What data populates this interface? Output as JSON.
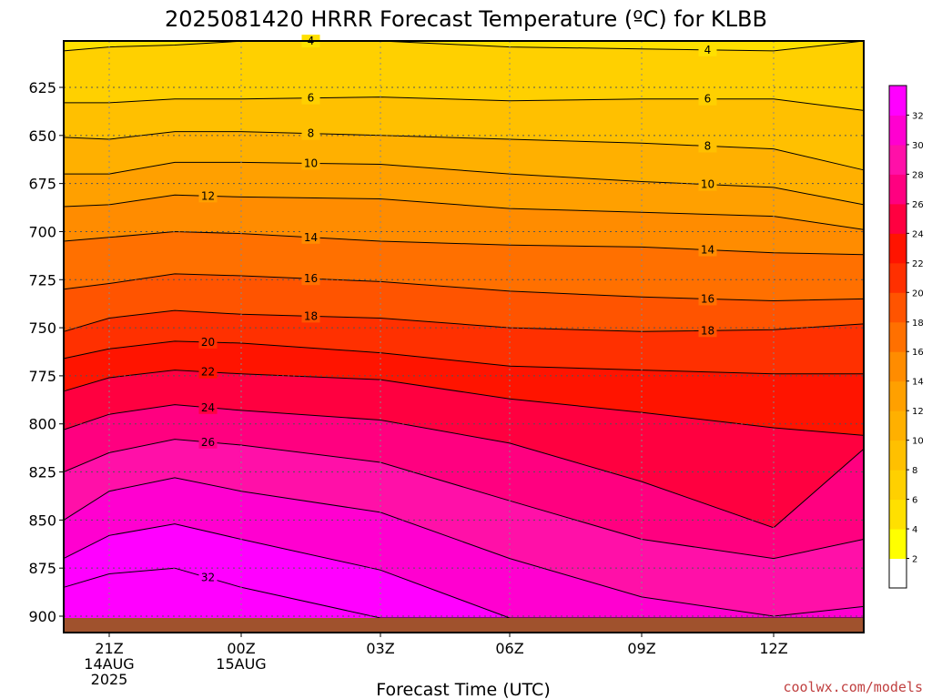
{
  "chart_data": {
    "type": "contour",
    "title": "2025081420 HRRR Forecast Temperature (ºC) for KLBB",
    "xlabel": "Forecast Time (UTC)",
    "ylabel": "",
    "y_ticks": [
      "625",
      "650",
      "675",
      "700",
      "725",
      "750",
      "775",
      "800",
      "825",
      "850",
      "875",
      "900"
    ],
    "x_ticks": [
      {
        "lines": [
          "21Z",
          "14AUG",
          "2025"
        ]
      },
      {
        "lines": [
          "00Z",
          "15AUG"
        ]
      },
      {
        "lines": [
          "03Z"
        ]
      },
      {
        "lines": [
          "06Z"
        ]
      },
      {
        "lines": [
          "09Z"
        ]
      },
      {
        "lines": [
          "12Z"
        ]
      }
    ],
    "grid": true,
    "colorbar_ticks": [
      2,
      4,
      6,
      8,
      10,
      12,
      14,
      16,
      18,
      20,
      22,
      24,
      26,
      28,
      30,
      32
    ],
    "colorbar_colors": [
      "#ffffff",
      "#ffff00",
      "#ffe000",
      "#ffd000",
      "#ffc000",
      "#ffb000",
      "#ffa000",
      "#ff8c00",
      "#ff7000",
      "#ff5400",
      "#ff3000",
      "#ff1400",
      "#ff0040",
      "#ff0080",
      "#ff10a8",
      "#ff00d0",
      "#ff00ff"
    ],
    "contours": [
      {
        "value": 4,
        "pressure": [
          606,
          604,
          603,
          601,
          600,
          604,
          605,
          606,
          600
        ],
        "labels": [
          "4",
          "4"
        ]
      },
      {
        "value": 6,
        "pressure": [
          633,
          633,
          631,
          631,
          630,
          632,
          631,
          631,
          637
        ],
        "labels": [
          "6",
          "6"
        ]
      },
      {
        "value": 8,
        "pressure": [
          651,
          652,
          648,
          648,
          650,
          652,
          654,
          657,
          668
        ],
        "labels": [
          "8",
          "8"
        ]
      },
      {
        "value": 10,
        "pressure": [
          670,
          670,
          664,
          664,
          665,
          670,
          674,
          677,
          686
        ],
        "labels": [
          "10",
          "10"
        ]
      },
      {
        "value": 12,
        "pressure": [
          687,
          686,
          681,
          682,
          683,
          688,
          690,
          692,
          699
        ],
        "labels": [
          "12"
        ]
      },
      {
        "value": 14,
        "pressure": [
          705,
          703,
          700,
          701,
          705,
          707,
          708,
          711,
          712
        ],
        "labels": [
          "14",
          "14"
        ]
      },
      {
        "value": 16,
        "pressure": [
          730,
          727,
          722,
          723,
          726,
          731,
          734,
          736,
          735
        ],
        "labels": [
          "16",
          "16"
        ]
      },
      {
        "value": 18,
        "pressure": [
          752,
          745,
          741,
          743,
          745,
          750,
          752,
          751,
          748
        ],
        "labels": [
          "18",
          "18"
        ]
      },
      {
        "value": 20,
        "pressure": [
          766,
          761,
          757,
          758,
          763,
          770,
          772,
          774,
          774
        ],
        "labels": [
          "20"
        ]
      },
      {
        "value": 22,
        "pressure": [
          783,
          776,
          772,
          774,
          777,
          787,
          794,
          802,
          806
        ],
        "labels": [
          "22"
        ]
      },
      {
        "value": 24,
        "pressure": [
          803,
          795,
          790,
          793,
          798,
          810,
          830,
          854,
          813
        ],
        "labels": [
          "24"
        ]
      },
      {
        "value": 26,
        "pressure": [
          825,
          815,
          808,
          811,
          820,
          840,
          860,
          870,
          860
        ],
        "labels": [
          "26"
        ]
      },
      {
        "value": 28,
        "pressure": [
          850,
          835,
          828,
          835,
          846,
          870,
          890,
          900,
          895
        ],
        "labels": []
      },
      {
        "value": 30,
        "pressure": [
          870,
          858,
          852,
          860,
          876,
          905,
          910,
          910,
          905
        ],
        "labels": []
      },
      {
        "value": 32,
        "pressure": [
          885,
          878,
          875,
          885,
          905,
          910,
          910,
          910,
          910
        ],
        "labels": [
          "32"
        ]
      }
    ]
  },
  "credit": "coolwx.com/models"
}
